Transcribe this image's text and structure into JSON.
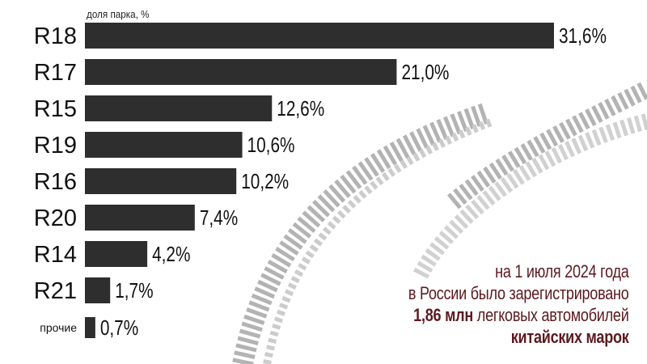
{
  "chart_data": {
    "type": "bar",
    "orientation": "horizontal",
    "unit_label": "доля парка, %",
    "categories": [
      "R18",
      "R17",
      "R15",
      "R19",
      "R16",
      "R20",
      "R14",
      "R21",
      "прочие"
    ],
    "values": [
      31.6,
      21.0,
      12.6,
      10.6,
      10.2,
      7.4,
      4.2,
      1.7,
      0.7
    ],
    "value_labels": [
      "31,6%",
      "21,0%",
      "12,6%",
      "10,6%",
      "10,2%",
      "7,4%",
      "4,2%",
      "1,7%",
      "0,7%"
    ],
    "xlim": [
      0,
      31.6
    ],
    "grid": false,
    "colors": {
      "bar": "#2e2e2e",
      "text": "#111111",
      "accent": "#5b1a1f"
    }
  },
  "note": {
    "line1": "на 1 июля 2024 года",
    "line2": "в России было зарегистрировано",
    "line3_bold": "1,86 млн",
    "line3_rest": " легковых автомобилей",
    "line4_bold": "китайских марок"
  }
}
